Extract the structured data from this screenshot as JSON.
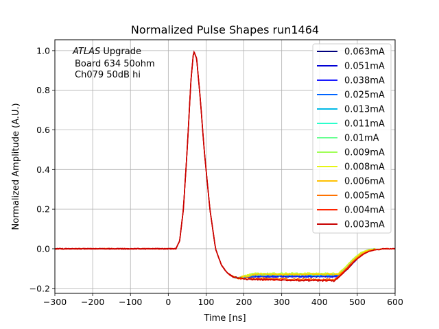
{
  "chart_data": {
    "type": "line",
    "title": "Normalized Pulse Shapes run1464",
    "xlabel": "Time [ns]",
    "ylabel": "Normalized Amplitude (A.U.)",
    "xlim": [
      -300,
      600
    ],
    "ylim": [
      -0.225,
      1.055
    ],
    "xticks": [
      -300,
      -200,
      -100,
      0,
      100,
      200,
      300,
      400,
      500,
      600
    ],
    "xtick_labels": [
      "−300",
      "−200",
      "−100",
      "0",
      "100",
      "200",
      "300",
      "400",
      "500",
      "600"
    ],
    "yticks": [
      -0.2,
      0.0,
      0.2,
      0.4,
      0.6,
      0.8,
      1.0
    ],
    "ytick_labels": [
      "−0.2",
      "0.0",
      "0.2",
      "0.4",
      "0.6",
      "0.8",
      "1.0"
    ],
    "grid": true,
    "legend_position": "top-right",
    "annotation": {
      "italic": "ATLAS",
      "line1_rest": " Upgrade",
      "line2": "Board 634 50ohm",
      "line3": "Ch079 50dB hi"
    },
    "common_shape": {
      "x": [
        -300,
        20,
        30,
        40,
        50,
        60,
        67,
        75,
        85,
        95,
        110,
        125,
        140,
        155,
        170,
        185,
        200,
        230
      ],
      "y": [
        0.0,
        0.0,
        0.04,
        0.2,
        0.5,
        0.85,
        1.0,
        0.96,
        0.75,
        0.5,
        0.2,
        0.0,
        -0.08,
        -0.12,
        -0.14,
        -0.148,
        -0.15,
        -0.15
      ]
    },
    "series": [
      {
        "name": "0.063mA",
        "color": "#00007f",
        "plateau": -0.14,
        "x_end": 540,
        "tail": [
          [
            450,
            -0.14
          ],
          [
            470,
            -0.11
          ],
          [
            490,
            -0.07
          ],
          [
            510,
            -0.03
          ],
          [
            525,
            -0.01
          ],
          [
            540,
            0.0
          ]
        ]
      },
      {
        "name": "0.051mA",
        "color": "#0000d5",
        "plateau": -0.14,
        "x_end": 545,
        "tail": [
          [
            450,
            -0.14
          ],
          [
            470,
            -0.11
          ],
          [
            490,
            -0.07
          ],
          [
            510,
            -0.03
          ],
          [
            525,
            -0.01
          ],
          [
            545,
            0.0
          ]
        ]
      },
      {
        "name": "0.038mA",
        "color": "#1a1aff",
        "plateau": -0.14,
        "x_end": 545,
        "tail": [
          [
            450,
            -0.14
          ],
          [
            470,
            -0.11
          ],
          [
            490,
            -0.07
          ],
          [
            510,
            -0.03
          ],
          [
            525,
            -0.01
          ],
          [
            545,
            0.0
          ]
        ]
      },
      {
        "name": "0.025mA",
        "color": "#0064ff",
        "plateau": -0.135,
        "x_end": 545,
        "tail": [
          [
            450,
            -0.135
          ],
          [
            470,
            -0.1
          ],
          [
            490,
            -0.06
          ],
          [
            510,
            -0.025
          ],
          [
            525,
            -0.01
          ],
          [
            545,
            0.0
          ]
        ]
      },
      {
        "name": "0.013mA",
        "color": "#00b9e6",
        "plateau": -0.13,
        "x_end": 550,
        "tail": [
          [
            450,
            -0.13
          ],
          [
            470,
            -0.09
          ],
          [
            490,
            -0.05
          ],
          [
            510,
            -0.02
          ],
          [
            530,
            -0.005
          ],
          [
            550,
            0.0
          ]
        ]
      },
      {
        "name": "0.011mA",
        "color": "#2bffcc",
        "plateau": -0.13,
        "x_end": 550,
        "tail": [
          [
            450,
            -0.13
          ],
          [
            470,
            -0.09
          ],
          [
            490,
            -0.05
          ],
          [
            510,
            -0.02
          ],
          [
            530,
            -0.005
          ],
          [
            550,
            0.0
          ]
        ]
      },
      {
        "name": "0.01mA",
        "color": "#66ff90",
        "plateau": -0.13,
        "x_end": 550,
        "tail": [
          [
            450,
            -0.13
          ],
          [
            470,
            -0.09
          ],
          [
            490,
            -0.05
          ],
          [
            510,
            -0.02
          ],
          [
            530,
            -0.005
          ],
          [
            550,
            0.0
          ]
        ]
      },
      {
        "name": "0.009mA",
        "color": "#a0ff56",
        "plateau": -0.125,
        "x_end": 550,
        "tail": [
          [
            450,
            -0.125
          ],
          [
            470,
            -0.09
          ],
          [
            490,
            -0.05
          ],
          [
            510,
            -0.02
          ],
          [
            530,
            -0.005
          ],
          [
            550,
            0.0
          ]
        ]
      },
      {
        "name": "0.008mA",
        "color": "#e6f514",
        "plateau": -0.125,
        "x_end": 550,
        "tail": [
          [
            450,
            -0.125
          ],
          [
            470,
            -0.09
          ],
          [
            490,
            -0.05
          ],
          [
            510,
            -0.02
          ],
          [
            530,
            -0.005
          ],
          [
            550,
            0.0
          ]
        ]
      },
      {
        "name": "0.006mA",
        "color": "#ffc000",
        "plateau": -0.13,
        "x_end": 550,
        "tail": [
          [
            450,
            -0.13
          ],
          [
            470,
            -0.1
          ],
          [
            490,
            -0.06
          ],
          [
            510,
            -0.025
          ],
          [
            530,
            -0.008
          ],
          [
            550,
            0.0
          ]
        ]
      },
      {
        "name": "0.005mA",
        "color": "#ff7200",
        "plateau": -0.15,
        "x_end": 600,
        "tail": [
          [
            440,
            -0.155
          ],
          [
            460,
            -0.12
          ],
          [
            480,
            -0.08
          ],
          [
            500,
            -0.045
          ],
          [
            520,
            -0.02
          ],
          [
            540,
            -0.006
          ],
          [
            570,
            0.0
          ],
          [
            600,
            0.0
          ]
        ]
      },
      {
        "name": "0.004mA",
        "color": "#ff2300",
        "plateau": -0.155,
        "x_end": 600,
        "tail": [
          [
            440,
            -0.16
          ],
          [
            460,
            -0.125
          ],
          [
            480,
            -0.085
          ],
          [
            500,
            -0.05
          ],
          [
            520,
            -0.022
          ],
          [
            540,
            -0.008
          ],
          [
            570,
            0.0
          ],
          [
            600,
            0.0
          ]
        ]
      },
      {
        "name": "0.003mA",
        "color": "#c80000",
        "plateau": -0.155,
        "x_end": 600,
        "tail": [
          [
            440,
            -0.162
          ],
          [
            460,
            -0.13
          ],
          [
            480,
            -0.09
          ],
          [
            500,
            -0.05
          ],
          [
            520,
            -0.022
          ],
          [
            540,
            -0.008
          ],
          [
            570,
            0.0
          ],
          [
            600,
            0.0
          ]
        ]
      }
    ]
  }
}
